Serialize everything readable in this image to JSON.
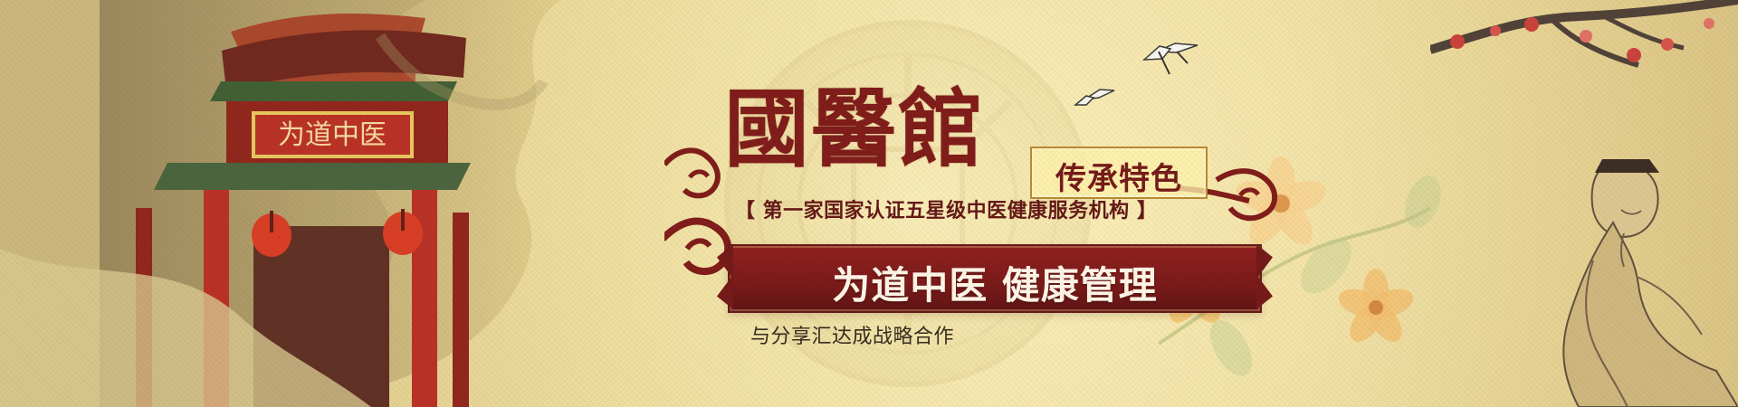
{
  "hero": {
    "title": "國醫館",
    "badge": "传承特色",
    "subtitle": "【 第一家国家认证五星级中医健康服务机构 】",
    "ribbon": "为道中医  健康管理",
    "caption": "与分享汇达成战略合作"
  },
  "scene": {
    "signboard": "为道中医"
  },
  "colors": {
    "paper": "#ead89c",
    "burgundy": "#7b1413",
    "gold": "#b6862e"
  }
}
